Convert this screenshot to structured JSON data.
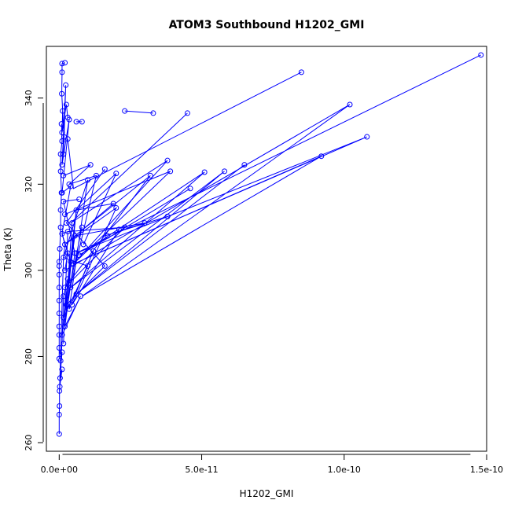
{
  "chart_data": {
    "type": "scatter",
    "title": "ATOM3 Southbound H1202_GMI",
    "xlabel": "H1202_GMI",
    "ylabel": "Theta (K)",
    "xlim": [
      -4.5e-12,
      1.5e-10
    ],
    "ylim": [
      258,
      352
    ],
    "x_ticks": [
      0,
      5e-11,
      1e-10,
      1.5e-10
    ],
    "x_tick_labels": [
      "0.0e+00",
      "5.0e-11",
      "1.0e-10",
      "1.5e-10"
    ],
    "y_ticks": [
      260,
      280,
      300,
      320,
      340
    ],
    "y_tick_labels": [
      "260",
      "280",
      "300",
      "320",
      "340"
    ],
    "grid": false,
    "legend": "none",
    "series_color": "#0000ff",
    "series": [
      {
        "name": "",
        "points": [
          [
            1.48e-10,
            350.0
          ],
          [
            8.5e-11,
            346.0
          ],
          [
            1.02e-10,
            338.5
          ],
          [
            1.08e-10,
            331.0
          ],
          [
            9.2e-11,
            326.5
          ],
          [
            6.5e-11,
            324.5
          ],
          [
            5.8e-11,
            323.0
          ],
          [
            5.1e-11,
            322.8
          ],
          [
            3.9e-11,
            323.0
          ],
          [
            3.8e-11,
            325.5
          ],
          [
            4.6e-11,
            319.0
          ],
          [
            3.8e-11,
            312.5
          ],
          [
            3.2e-11,
            322.0
          ],
          [
            3e-11,
            311.0
          ],
          [
            2.3e-11,
            310.0
          ],
          [
            2.1e-11,
            309.5
          ],
          [
            2e-11,
            314.5
          ],
          [
            1.9e-11,
            315.5
          ],
          [
            2e-11,
            322.5
          ],
          [
            1.6e-11,
            323.5
          ],
          [
            1.6e-11,
            301.0
          ],
          [
            1.7e-11,
            308.0
          ],
          [
            1.3e-11,
            322.0
          ],
          [
            1.1e-11,
            324.5
          ],
          [
            1e-11,
            321.0
          ],
          [
            1.2e-11,
            304.5
          ],
          [
            1e-11,
            301.0
          ],
          [
            8e-12,
            310.0
          ],
          [
            8.5e-12,
            306.0
          ],
          [
            7e-12,
            316.5
          ],
          [
            6e-12,
            314.0
          ],
          [
            5.5e-12,
            308.0
          ],
          [
            5.5e-12,
            304.0
          ],
          [
            5e-12,
            301.5
          ],
          [
            7.5e-12,
            294.0
          ],
          [
            6e-12,
            294.5
          ],
          [
            4.5e-12,
            292.0
          ],
          [
            4e-12,
            296.0
          ],
          [
            4e-12,
            302.0
          ],
          [
            4.5e-12,
            311.0
          ],
          [
            4e-12,
            319.5
          ],
          [
            3.5e-12,
            320.0
          ],
          [
            3.5e-12,
            335.0
          ],
          [
            3e-12,
            330.5
          ],
          [
            2.3e-12,
            343.0
          ],
          [
            2e-12,
            348.2
          ],
          [
            1.7e-12,
            331.0
          ],
          [
            1.2e-12,
            337.0
          ],
          [
            1e-12,
            348.0
          ],
          [
            1e-12,
            346.0
          ],
          [
            9e-13,
            341.0
          ],
          [
            1e-12,
            332.0
          ],
          [
            1.5e-12,
            327.0
          ],
          [
            1e-12,
            324.5
          ],
          [
            1.5e-12,
            322.0
          ],
          [
            1e-12,
            318.0
          ],
          [
            1.5e-12,
            316.0
          ],
          [
            2e-12,
            313.0
          ],
          [
            2.5e-12,
            311.0
          ],
          [
            3e-12,
            309.0
          ],
          [
            1e-12,
            308.5
          ],
          [
            2e-12,
            306.0
          ],
          [
            3e-12,
            304.0
          ],
          [
            1.5e-12,
            303.0
          ],
          [
            2e-12,
            300.0
          ],
          [
            3e-12,
            298.0
          ],
          [
            2e-12,
            296.0
          ],
          [
            1.5e-12,
            294.0
          ],
          [
            2.5e-12,
            292.0
          ],
          [
            3.5e-12,
            291.0
          ],
          [
            1.5e-12,
            289.0
          ],
          [
            2e-12,
            287.0
          ],
          [
            1e-12,
            285.0
          ],
          [
            1.5e-12,
            283.0
          ],
          [
            1e-12,
            281.0
          ],
          [
            5e-13,
            279.0
          ],
          [
            1e-12,
            277.0
          ],
          [
            3e-13,
            275.0
          ],
          [
            2e-13,
            273.0
          ],
          [
            1e-13,
            272.0
          ],
          [
            1e-13,
            268.5
          ],
          [
            0.0,
            266.5
          ],
          [
            0.0,
            262.0
          ],
          [
            0.0,
            279.5
          ],
          [
            0.0,
            282.0
          ],
          [
            0.0,
            285.0
          ],
          [
            0.0,
            287.0
          ],
          [
            0.0,
            290.0
          ],
          [
            0.0,
            293.0
          ],
          [
            0.0,
            296.0
          ],
          [
            0.0,
            299.0
          ],
          [
            0.0,
            301.0
          ],
          [
            0.0,
            302.0
          ],
          [
            2e-13,
            305.0
          ],
          [
            5e-13,
            310.0
          ],
          [
            5e-13,
            314.0
          ],
          [
            8e-13,
            318.0
          ],
          [
            5e-13,
            323.0
          ],
          [
            5e-13,
            327.0
          ],
          [
            1e-12,
            330.0
          ],
          [
            8e-13,
            334.0
          ],
          [
            6e-12,
            334.5
          ],
          [
            8e-12,
            334.5
          ],
          [
            2.3e-11,
            337.0
          ],
          [
            3.3e-11,
            336.5
          ],
          [
            4.5e-11,
            336.5
          ],
          [
            2.5e-12,
            338.5
          ],
          [
            3e-12,
            335.5
          ],
          [
            6e-12,
            304.0
          ],
          [
            7e-12,
            303.5
          ]
        ],
        "paths": [
          [
            [
              1.48e-10,
              350.0
            ],
            [
              6e-12,
              304.0
            ],
            [
              1.08e-10,
              331.0
            ],
            [
              5e-12,
              301.5
            ],
            [
              9.2e-11,
              326.5
            ],
            [
              8e-12,
              294.0
            ],
            [
              1.02e-10,
              338.5
            ],
            [
              2e-12,
              300.0
            ],
            [
              3e-12,
              304.0
            ]
          ],
          [
            [
              8.5e-11,
              346.0
            ],
            [
              5e-12,
              319.0
            ],
            [
              3e-12,
              330.5
            ]
          ],
          [
            [
              6.5e-11,
              324.5
            ],
            [
              6e-12,
              294.5
            ],
            [
              5.8e-11,
              323.0
            ],
            [
              4e-12,
              296.0
            ],
            [
              5.1e-11,
              322.8
            ],
            [
              7e-12,
              303.5
            ],
            [
              4.6e-11,
              319.0
            ]
          ],
          [
            [
              4.5e-11,
              336.5
            ],
            [
              4e-12,
              311.0
            ],
            [
              3.8e-11,
              325.5
            ],
            [
              5e-12,
              301.5
            ],
            [
              3.9e-11,
              323.0
            ],
            [
              2e-12,
              313.0
            ]
          ],
          [
            [
              3.8e-11,
              312.5
            ],
            [
              1.6e-11,
              308.0
            ],
            [
              3e-11,
              311.0
            ],
            [
              5.5e-12,
              308.0
            ],
            [
              3.2e-11,
              322.0
            ],
            [
              2e-12,
              296.0
            ],
            [
              2.3e-11,
              310.0
            ],
            [
              3e-12,
              309.0
            ]
          ],
          [
            [
              2.1e-11,
              309.5
            ],
            [
              4.5e-12,
              292.0
            ],
            [
              2e-11,
              314.5
            ],
            [
              2e-12,
              306.0
            ],
            [
              1.9e-11,
              315.5
            ],
            [
              6e-12,
              314.0
            ],
            [
              2e-11,
              322.5
            ],
            [
              8.5e-12,
              306.0
            ]
          ],
          [
            [
              1.6e-11,
              323.5
            ],
            [
              2.5e-12,
              311.0
            ],
            [
              1.6e-11,
              301.0
            ],
            [
              2.5e-12,
              292.0
            ],
            [
              1.3e-11,
              322.0
            ],
            [
              3.5e-12,
              320.0
            ],
            [
              1.1e-11,
              324.5
            ],
            [
              1.5e-12,
              322.0
            ]
          ],
          [
            [
              1.2e-11,
              304.5
            ],
            [
              3.5e-12,
              291.0
            ],
            [
              1e-11,
              321.0
            ],
            [
              1.5e-12,
              303.0
            ],
            [
              1e-11,
              301.0
            ],
            [
              1.5e-12,
              289.0
            ],
            [
              8e-12,
              310.0
            ]
          ],
          [
            [
              7e-12,
              316.5
            ],
            [
              1.5e-12,
              316.0
            ],
            [
              5.5e-12,
              304.0
            ],
            [
              2e-12,
              287.0
            ],
            [
              7.5e-12,
              294.0
            ],
            [
              1e-12,
              285.0
            ]
          ],
          [
            [
              4e-12,
              302.0
            ],
            [
              1e-12,
              308.5
            ],
            [
              4e-12,
              319.5
            ],
            [
              1e-12,
              318.0
            ],
            [
              3.5e-12,
              335.0
            ],
            [
              1e-12,
              324.5
            ],
            [
              2.3e-12,
              343.0
            ],
            [
              1.5e-12,
              327.0
            ]
          ],
          [
            [
              2e-12,
              348.2
            ],
            [
              1e-12,
              348.0
            ],
            [
              1e-12,
              346.0
            ],
            [
              9e-13,
              341.0
            ],
            [
              1.7e-12,
              331.0
            ],
            [
              1.2e-12,
              337.0
            ],
            [
              1e-12,
              332.0
            ],
            [
              2.5e-12,
              338.5
            ],
            [
              3e-12,
              335.5
            ]
          ],
          [
            [
              6e-12,
              334.5
            ],
            [
              8e-12,
              334.5
            ]
          ],
          [
            [
              2.3e-11,
              337.0
            ],
            [
              3.3e-11,
              336.5
            ]
          ],
          [
            [
              3e-12,
              298.0
            ],
            [
              1.5e-12,
              294.0
            ],
            [
              1e-12,
              283.0
            ],
            [
              5e-13,
              279.0
            ],
            [
              1e-12,
              281.0
            ],
            [
              3e-13,
              275.0
            ],
            [
              1e-12,
              277.0
            ],
            [
              2e-13,
              273.0
            ],
            [
              1e-13,
              272.0
            ],
            [
              1e-13,
              268.5
            ],
            [
              0.0,
              266.5
            ],
            [
              0.0,
              262.0
            ]
          ],
          [
            [
              0.0,
              279.5
            ],
            [
              0.0,
              282.0
            ],
            [
              0.0,
              285.0
            ],
            [
              0.0,
              287.0
            ],
            [
              0.0,
              290.0
            ],
            [
              0.0,
              293.0
            ],
            [
              0.0,
              296.0
            ],
            [
              0.0,
              299.0
            ],
            [
              0.0,
              301.0
            ],
            [
              0.0,
              302.0
            ],
            [
              2e-13,
              305.0
            ],
            [
              5e-13,
              310.0
            ],
            [
              5e-13,
              314.0
            ],
            [
              8e-13,
              318.0
            ],
            [
              5e-13,
              323.0
            ],
            [
              5e-13,
              327.0
            ],
            [
              1e-12,
              330.0
            ],
            [
              8e-13,
              334.0
            ]
          ],
          [
            [
              1.5e-12,
              283.0
            ],
            [
              3e-12,
              309.0
            ],
            [
              1e-12,
              308.5
            ],
            [
              2e-12,
              306.0
            ],
            [
              1.5e-12,
              303.0
            ],
            [
              1e-13,
              272.0
            ]
          ],
          [
            [
              1e-12,
              285.0
            ],
            [
              4e-12,
              302.0
            ],
            [
              5.5e-12,
              308.0
            ],
            [
              1.5e-12,
              289.0
            ],
            [
              6e-12,
              314.0
            ],
            [
              2e-12,
              287.0
            ],
            [
              4.5e-12,
              311.0
            ]
          ]
        ]
      }
    ]
  }
}
